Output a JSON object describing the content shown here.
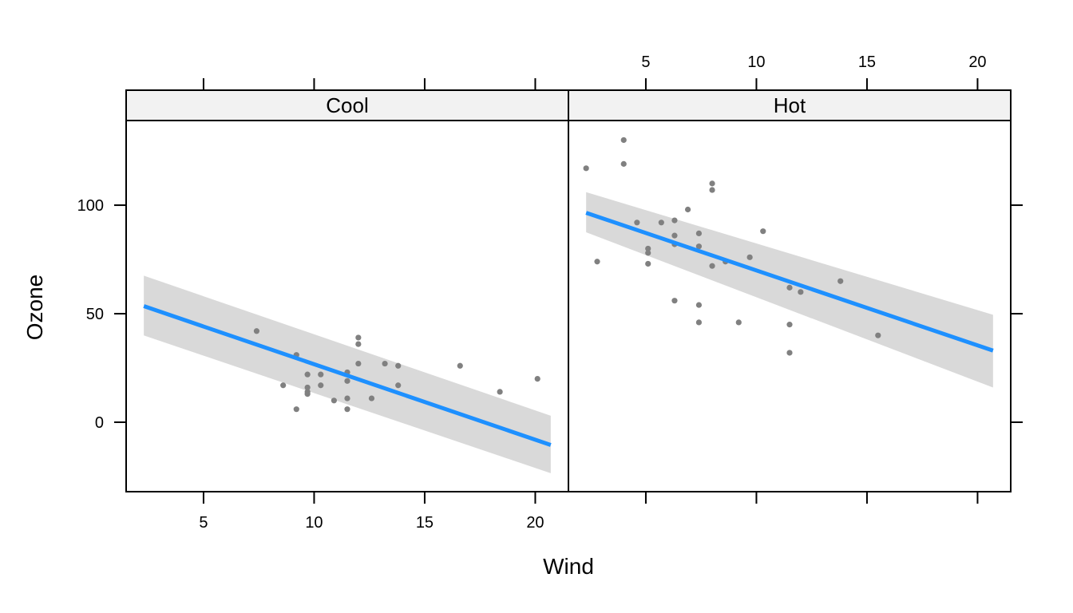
{
  "chart_data": {
    "type": "scatter",
    "xlabel": "Wind",
    "ylabel": "Ozone",
    "xlim": [
      1.5,
      21.5
    ],
    "ylim": [
      -32,
      139
    ],
    "x_ticks": [
      5,
      10,
      15,
      20
    ],
    "x_tick_labels": [
      "5",
      "10",
      "15",
      "20"
    ],
    "y_ticks": [
      0,
      50,
      100
    ],
    "y_tick_labels": [
      "0",
      "50",
      "100"
    ],
    "point_color": "#808080",
    "line_color": "#1e90ff",
    "band_color": "#d9d9d9",
    "strip_color": "#f2f2f2",
    "panels": [
      {
        "name": "Cool",
        "points": [
          {
            "x": 7.4,
            "y": 42
          },
          {
            "x": 8.6,
            "y": 17
          },
          {
            "x": 9.2,
            "y": 31
          },
          {
            "x": 9.2,
            "y": 6
          },
          {
            "x": 9.7,
            "y": 22
          },
          {
            "x": 9.7,
            "y": 16
          },
          {
            "x": 9.7,
            "y": 14
          },
          {
            "x": 9.7,
            "y": 13
          },
          {
            "x": 10.3,
            "y": 22
          },
          {
            "x": 10.3,
            "y": 17
          },
          {
            "x": 10.9,
            "y": 10
          },
          {
            "x": 11.5,
            "y": 23
          },
          {
            "x": 11.5,
            "y": 19
          },
          {
            "x": 11.5,
            "y": 11
          },
          {
            "x": 11.5,
            "y": 6
          },
          {
            "x": 12.0,
            "y": 39
          },
          {
            "x": 12.0,
            "y": 36
          },
          {
            "x": 12.0,
            "y": 27
          },
          {
            "x": 12.6,
            "y": 11
          },
          {
            "x": 13.2,
            "y": 27
          },
          {
            "x": 13.8,
            "y": 26
          },
          {
            "x": 13.8,
            "y": 17
          },
          {
            "x": 16.6,
            "y": 26
          },
          {
            "x": 18.4,
            "y": 14
          },
          {
            "x": 20.1,
            "y": 20
          }
        ],
        "fit": {
          "x": [
            2.3,
            20.7
          ],
          "y": [
            53.5,
            -10.5
          ]
        },
        "band": {
          "x": [
            2.3,
            20.7
          ],
          "upper": [
            67.5,
            3
          ],
          "lower": [
            40,
            -23.5
          ]
        }
      },
      {
        "name": "Hot",
        "points": [
          {
            "x": 2.3,
            "y": 117
          },
          {
            "x": 2.8,
            "y": 74
          },
          {
            "x": 4.0,
            "y": 130
          },
          {
            "x": 4.0,
            "y": 119
          },
          {
            "x": 4.6,
            "y": 92
          },
          {
            "x": 5.1,
            "y": 80
          },
          {
            "x": 5.1,
            "y": 78
          },
          {
            "x": 5.1,
            "y": 73
          },
          {
            "x": 5.7,
            "y": 92
          },
          {
            "x": 6.3,
            "y": 93
          },
          {
            "x": 6.3,
            "y": 86
          },
          {
            "x": 6.3,
            "y": 82
          },
          {
            "x": 6.3,
            "y": 56
          },
          {
            "x": 6.9,
            "y": 98
          },
          {
            "x": 7.4,
            "y": 87
          },
          {
            "x": 7.4,
            "y": 81
          },
          {
            "x": 7.4,
            "y": 54
          },
          {
            "x": 7.4,
            "y": 46
          },
          {
            "x": 8.0,
            "y": 110
          },
          {
            "x": 8.0,
            "y": 107
          },
          {
            "x": 8.0,
            "y": 72
          },
          {
            "x": 8.6,
            "y": 74
          },
          {
            "x": 9.2,
            "y": 46
          },
          {
            "x": 9.7,
            "y": 76
          },
          {
            "x": 10.3,
            "y": 88
          },
          {
            "x": 11.5,
            "y": 62
          },
          {
            "x": 11.5,
            "y": 45
          },
          {
            "x": 11.5,
            "y": 32
          },
          {
            "x": 12.0,
            "y": 60
          },
          {
            "x": 13.8,
            "y": 65
          },
          {
            "x": 15.5,
            "y": 40
          }
        ],
        "fit": {
          "x": [
            2.3,
            20.7
          ],
          "y": [
            96.5,
            33
          ]
        },
        "band": {
          "x": [
            2.3,
            20.7
          ],
          "upper": [
            106,
            49.5
          ],
          "lower": [
            87.5,
            16
          ]
        }
      }
    ]
  }
}
